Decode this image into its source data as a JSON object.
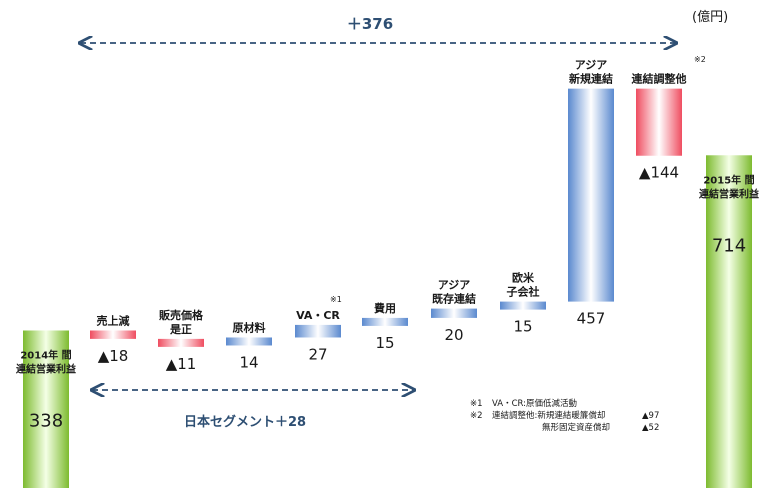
{
  "unit": "(億円)",
  "top_bracket": {
    "label": "＋376"
  },
  "japan_bracket": {
    "label": "日本セグメント＋28"
  },
  "sup_va_cr": "※1",
  "sup_adjust": "※2",
  "notes": [
    {
      "mark": "※1",
      "text": "VA・CR:原価低減活動",
      "value": ""
    },
    {
      "mark": "※2",
      "text": "連結調整他:新規連結暖簾償却",
      "value": "▲97"
    },
    {
      "mark": "",
      "text": "無形固定資産償却",
      "value": "▲52"
    }
  ],
  "colors": {
    "increase": "#6f9bd6",
    "decrease": "#f0596a",
    "total": "#8cc63f",
    "arrow": "#2e4f73"
  },
  "chart_data": {
    "type": "bar",
    "subtype": "waterfall",
    "categories": [
      "2014年 間 連結営業利益",
      "売上減",
      "販売価格 是正",
      "原材料",
      "VA・CR",
      "費用",
      "アジア 既存連結",
      "欧米 子会社",
      "アジア 新規連結",
      "連結調整他",
      "2015年 間 連結営業利益"
    ],
    "values": [
      338,
      -18,
      -11,
      14,
      27,
      15,
      20,
      15,
      457,
      -144,
      714
    ],
    "value_labels": [
      "338",
      "▲18",
      "▲11",
      "14",
      "27",
      "15",
      "20",
      "15",
      "457",
      "▲144",
      "714"
    ],
    "kinds": [
      "total",
      "decrease",
      "decrease",
      "increase",
      "increase",
      "increase",
      "increase",
      "increase",
      "increase",
      "decrease",
      "total"
    ],
    "label_lines": [
      [
        "2014年 間",
        "連結営業利益"
      ],
      [
        "売上減"
      ],
      [
        "販売価格",
        "是正"
      ],
      [
        "原材料"
      ],
      [
        "VA・CR"
      ],
      [
        "費用"
      ],
      [
        "アジア",
        "既存連結"
      ],
      [
        "欧米",
        "子会社"
      ],
      [
        "アジア",
        "新規連結"
      ],
      [
        "連結調整他"
      ],
      [
        "2015年 間",
        "連結営業利益"
      ]
    ],
    "unit": "億円"
  }
}
